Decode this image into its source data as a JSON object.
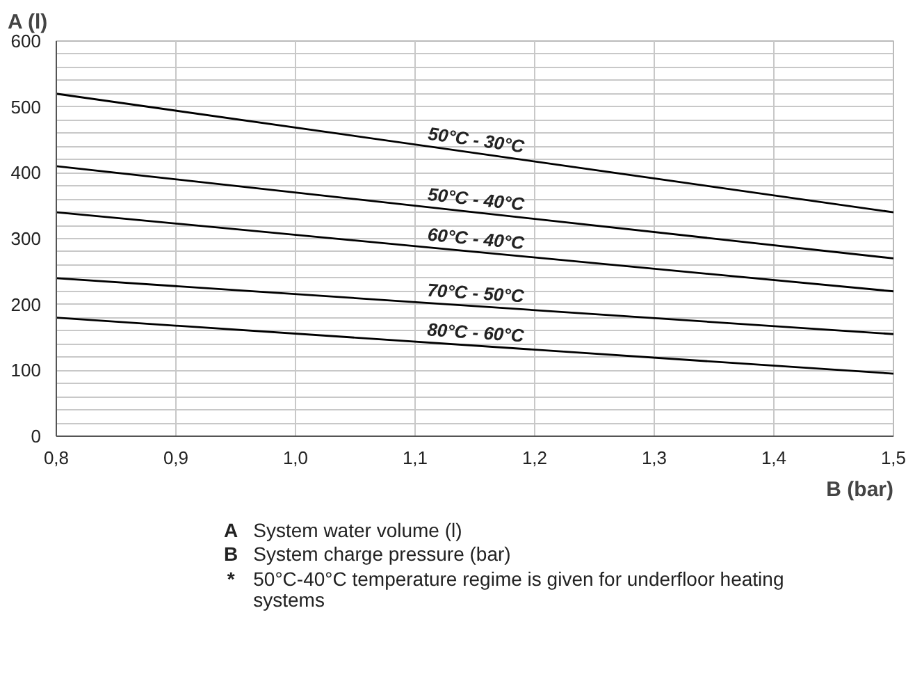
{
  "chart_data": {
    "type": "line",
    "xlabel": "B (bar)",
    "ylabel": "A (l)",
    "x": [
      0.8,
      1.5
    ],
    "series": [
      {
        "name": "50°C - 30°C",
        "color": "#000000",
        "values": [
          520,
          340
        ]
      },
      {
        "name": "50°C - 40°C",
        "color": "#000000",
        "values": [
          410,
          270
        ]
      },
      {
        "name": "60°C - 40°C",
        "color": "#000000",
        "values": [
          340,
          220
        ]
      },
      {
        "name": "70°C - 50°C",
        "color": "#000000",
        "values": [
          240,
          155
        ]
      },
      {
        "name": "80°C - 60°C",
        "color": "#000000",
        "values": [
          180,
          95
        ]
      }
    ],
    "xlim": [
      0.8,
      1.5
    ],
    "ylim": [
      0,
      600
    ],
    "xticks": [
      {
        "value": 0.8,
        "label": "0,8"
      },
      {
        "value": 0.9,
        "label": "0,9"
      },
      {
        "value": 1.0,
        "label": "1,0"
      },
      {
        "value": 1.1,
        "label": "1,1"
      },
      {
        "value": 1.2,
        "label": "1,2"
      },
      {
        "value": 1.3,
        "label": "1,3"
      },
      {
        "value": 1.4,
        "label": "1,4"
      },
      {
        "value": 1.5,
        "label": "1,5"
      }
    ],
    "yticks": [
      0,
      100,
      200,
      300,
      400,
      500,
      600
    ],
    "grid": true,
    "marker": "none",
    "line_style": "solid",
    "annotations": [
      "A System water volume (l)",
      "B System charge pressure (bar)",
      "* 50°C-40°C temperature regime is given for underfloor heating systems"
    ]
  }
}
